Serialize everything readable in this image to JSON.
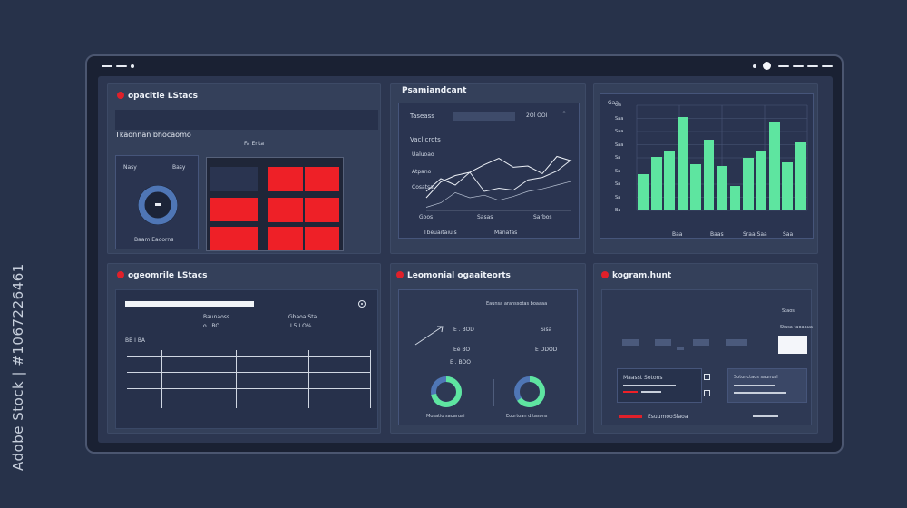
{
  "watermark": {
    "side_text": "Adobe Stock | #1067226461"
  },
  "panels": {
    "top_left": {
      "title": "opacitie LStacs",
      "header_text": "Tkaonnan bhocaomo",
      "sub_label": "Fa Enta",
      "card_labels": [
        "Nasy",
        "Basy"
      ],
      "gauge_label": "Baam Eaoorns"
    },
    "top_middle": {
      "title": "Psamiandcant",
      "search_label": "Taseass",
      "search_value": "2Ol   OOI",
      "chart_title": "Vacl crots",
      "y_labels": [
        "Ualuoao",
        "Atpano",
        "Cosatsa"
      ],
      "x_labels": [
        "Goos",
        "Sasas",
        "Sarbos"
      ],
      "footer_labels": [
        "Tbeuaitaiuis",
        "Manafas"
      ]
    },
    "top_right": {
      "y_ticks": [
        "Ga",
        "Saa",
        "Saa",
        "Saa",
        "Sa",
        "Sa",
        "Sa",
        "Sa",
        "Ba"
      ],
      "x_labels": [
        "Baa",
        "Baas",
        "Sraa Saa",
        "Saa"
      ],
      "corner_label": "Gaa"
    },
    "bottom_left": {
      "title": "ogeomrile LStacs",
      "mid_labels": [
        "Baunaoss",
        "Gbaoa Sta"
      ],
      "value_left": "o . BO",
      "value_right": "I 5 I.O% .",
      "row_label": "BB I BA"
    },
    "bottom_middle": {
      "title": "Leomonial ogaaiteorts",
      "top_label": "Eaunsa aranssotas boaaaa",
      "top_right": "Sisa",
      "values": [
        "E . BOD",
        "Ee BO",
        "E DDOD",
        "E . BOO"
      ],
      "donut_labels": [
        "Mosatio saoaruai",
        "Eoortoan d.tasons"
      ],
      "donut_values": [
        72,
        65
      ]
    },
    "bottom_right": {
      "title": "kogram.hunt",
      "top_labels": [
        "Staosi",
        "Stasa taoaaua"
      ],
      "card_titles": [
        "Maasst Sotons",
        "Sotonctaos saunusl"
      ],
      "footer_labels": [
        "Esuumoo",
        "Slaoa"
      ]
    }
  },
  "chart_data": [
    {
      "type": "line",
      "x": [
        0,
        1,
        2,
        3,
        4,
        5,
        6,
        7,
        8,
        9,
        10
      ],
      "series": [
        {
          "values": [
            20,
            45,
            55,
            60,
            72,
            82,
            68,
            70,
            58,
            85,
            78
          ]
        },
        {
          "values": [
            30,
            50,
            40,
            60,
            30,
            35,
            32,
            48,
            52,
            62,
            80
          ]
        },
        {
          "values": [
            5,
            12,
            28,
            20,
            24,
            16,
            22,
            30,
            34,
            40,
            46
          ]
        }
      ],
      "ylim": [
        0,
        100
      ]
    },
    {
      "type": "bar",
      "values": [
        38,
        56,
        62,
        98,
        48,
        74,
        46,
        26,
        55,
        62,
        92,
        50,
        72
      ],
      "ylim": [
        0,
        110
      ],
      "color": "#5ee5a0"
    }
  ],
  "colors": {
    "accent_red": "#ee2027",
    "accent_green": "#5ee5a0",
    "panel": "#34405a"
  }
}
